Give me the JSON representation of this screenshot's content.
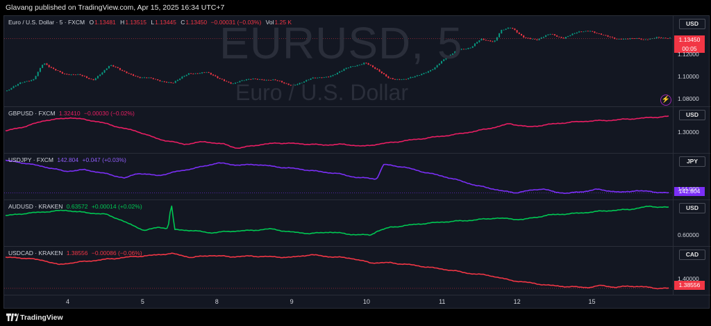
{
  "header": {
    "published_text": "Glavang published on TradingView.com, Apr 15, 2025 16:34 UTC+7"
  },
  "footer": {
    "brand": "TradingView"
  },
  "colors": {
    "down": "#f23645",
    "up": "#089981",
    "gbp": "#e91e63",
    "jpy": "#7b2ff7",
    "aud": "#00c853",
    "cad": "#f23645"
  },
  "chart_data": [
    {
      "type": "candlestick",
      "watermark": "EURUSD, 5",
      "watermark_sub": "Euro / U.S. Dollar",
      "legend": {
        "symbol": "Euro / U.S. Dollar · 5 · FXCM",
        "o_label": "O",
        "o": "1.13481",
        "h_label": "H",
        "h": "1.13515",
        "l_label": "L",
        "l": "1.13445",
        "c_label": "C",
        "c": "1.13450",
        "chg": "−0.00031 (−0.03%)",
        "vol_label": "Vol",
        "vol": "1.25 K"
      },
      "currency": "USD",
      "price_tag": "1.13450",
      "countdown": "00:05",
      "ticks": [
        "1.12000",
        "1.10000",
        "1.08000"
      ],
      "tick_values": [
        1.12,
        1.1,
        1.08
      ],
      "ylim": [
        1.073,
        1.155
      ],
      "path": [
        [
          0,
          1.087
        ],
        [
          0.02,
          1.094
        ],
        [
          0.04,
          1.098
        ],
        [
          0.055,
          1.112
        ],
        [
          0.065,
          1.108
        ],
        [
          0.085,
          1.103
        ],
        [
          0.11,
          1.101
        ],
        [
          0.13,
          1.097
        ],
        [
          0.155,
          1.11
        ],
        [
          0.18,
          1.104
        ],
        [
          0.2,
          1.099
        ],
        [
          0.22,
          1.098
        ],
        [
          0.25,
          1.094
        ],
        [
          0.275,
          1.103
        ],
        [
          0.3,
          1.104
        ],
        [
          0.32,
          1.098
        ],
        [
          0.34,
          1.094
        ],
        [
          0.37,
          1.098
        ],
        [
          0.4,
          1.097
        ],
        [
          0.43,
          1.092
        ],
        [
          0.46,
          1.098
        ],
        [
          0.49,
          1.101
        ],
        [
          0.515,
          1.108
        ],
        [
          0.54,
          1.113
        ],
        [
          0.56,
          1.105
        ],
        [
          0.575,
          1.099
        ],
        [
          0.6,
          1.097
        ],
        [
          0.62,
          1.101
        ],
        [
          0.645,
          1.108
        ],
        [
          0.665,
          1.118
        ],
        [
          0.68,
          1.125
        ],
        [
          0.7,
          1.126
        ],
        [
          0.715,
          1.134
        ],
        [
          0.735,
          1.132
        ],
        [
          0.745,
          1.142
        ],
        [
          0.76,
          1.144
        ],
        [
          0.78,
          1.136
        ],
        [
          0.8,
          1.133
        ],
        [
          0.82,
          1.139
        ],
        [
          0.84,
          1.135
        ],
        [
          0.86,
          1.14
        ],
        [
          0.88,
          1.142
        ],
        [
          0.9,
          1.137
        ],
        [
          0.92,
          1.134
        ],
        [
          0.94,
          1.135
        ],
        [
          0.96,
          1.133
        ],
        [
          0.98,
          1.136
        ],
        [
          1.0,
          1.1345
        ]
      ]
    },
    {
      "type": "line",
      "legend": {
        "symbol": "GBPUSD · FXCM",
        "last": "1.32410",
        "chg": "−0.00030 (−0.02%)"
      },
      "currency": "USD",
      "ticks": [
        "1.30000"
      ],
      "tick_values": [
        1.3
      ],
      "ylim": [
        1.268,
        1.338
      ],
      "price_tag": "",
      "path": [
        [
          0,
          1.302
        ],
        [
          0.03,
          1.309
        ],
        [
          0.06,
          1.318
        ],
        [
          0.1,
          1.322
        ],
        [
          0.14,
          1.316
        ],
        [
          0.17,
          1.308
        ],
        [
          0.2,
          1.301
        ],
        [
          0.23,
          1.29
        ],
        [
          0.27,
          1.282
        ],
        [
          0.3,
          1.286
        ],
        [
          0.33,
          1.282
        ],
        [
          0.35,
          1.276
        ],
        [
          0.38,
          1.281
        ],
        [
          0.41,
          1.284
        ],
        [
          0.44,
          1.283
        ],
        [
          0.48,
          1.281
        ],
        [
          0.51,
          1.282
        ],
        [
          0.54,
          1.279
        ],
        [
          0.56,
          1.282
        ],
        [
          0.6,
          1.287
        ],
        [
          0.64,
          1.292
        ],
        [
          0.68,
          1.297
        ],
        [
          0.71,
          1.302
        ],
        [
          0.74,
          1.308
        ],
        [
          0.76,
          1.313
        ],
        [
          0.79,
          1.308
        ],
        [
          0.82,
          1.312
        ],
        [
          0.85,
          1.315
        ],
        [
          0.88,
          1.317
        ],
        [
          0.91,
          1.318
        ],
        [
          0.94,
          1.32
        ],
        [
          0.97,
          1.322
        ],
        [
          1.0,
          1.324
        ]
      ]
    },
    {
      "type": "line",
      "legend": {
        "symbol": "USDJPY · FXCM",
        "last": "142.804",
        "chg": "+0.047 (+0.03%)"
      },
      "currency": "JPY",
      "ticks": [
        "144.000"
      ],
      "tick_values": [
        144.0
      ],
      "ylim": [
        140.5,
        155.5
      ],
      "price_tag": "142.804",
      "path": [
        [
          0,
          153.3
        ],
        [
          0.03,
          152.4
        ],
        [
          0.06,
          151.2
        ],
        [
          0.09,
          149.8
        ],
        [
          0.12,
          150.3
        ],
        [
          0.15,
          149.1
        ],
        [
          0.18,
          147.6
        ],
        [
          0.2,
          149.2
        ],
        [
          0.23,
          148.4
        ],
        [
          0.26,
          149.8
        ],
        [
          0.29,
          151.0
        ],
        [
          0.32,
          152.5
        ],
        [
          0.35,
          151.8
        ],
        [
          0.38,
          152.0
        ],
        [
          0.41,
          151.2
        ],
        [
          0.44,
          150.6
        ],
        [
          0.47,
          149.8
        ],
        [
          0.5,
          149.1
        ],
        [
          0.53,
          147.8
        ],
        [
          0.56,
          147.4
        ],
        [
          0.57,
          152.0
        ],
        [
          0.6,
          151.2
        ],
        [
          0.63,
          149.6
        ],
        [
          0.66,
          148.2
        ],
        [
          0.69,
          146.5
        ],
        [
          0.71,
          145.2
        ],
        [
          0.73,
          144.4
        ],
        [
          0.75,
          143.4
        ],
        [
          0.77,
          142.9
        ],
        [
          0.79,
          143.6
        ],
        [
          0.81,
          144.2
        ],
        [
          0.83,
          143.0
        ],
        [
          0.85,
          142.8
        ],
        [
          0.87,
          143.2
        ],
        [
          0.89,
          144.0
        ],
        [
          0.91,
          143.5
        ],
        [
          0.93,
          143.0
        ],
        [
          0.95,
          143.6
        ],
        [
          0.97,
          143.3
        ],
        [
          1.0,
          142.804
        ]
      ]
    },
    {
      "type": "line",
      "legend": {
        "symbol": "AUDUSD · KRAKEN",
        "last": "0.63572",
        "chg": "+0.00014 (+0.02%)"
      },
      "currency": "USD",
      "ticks": [
        "0.60000"
      ],
      "tick_values": [
        0.6
      ],
      "ylim": [
        0.585,
        0.645
      ],
      "price_tag": "",
      "path": [
        [
          0,
          0.625
        ],
        [
          0.03,
          0.628
        ],
        [
          0.06,
          0.63
        ],
        [
          0.09,
          0.632
        ],
        [
          0.12,
          0.629
        ],
        [
          0.15,
          0.627
        ],
        [
          0.17,
          0.621
        ],
        [
          0.19,
          0.613
        ],
        [
          0.21,
          0.606
        ],
        [
          0.23,
          0.61
        ],
        [
          0.245,
          0.609
        ],
        [
          0.25,
          0.641
        ],
        [
          0.255,
          0.607
        ],
        [
          0.28,
          0.606
        ],
        [
          0.31,
          0.603
        ],
        [
          0.34,
          0.605
        ],
        [
          0.37,
          0.606
        ],
        [
          0.4,
          0.608
        ],
        [
          0.43,
          0.604
        ],
        [
          0.46,
          0.602
        ],
        [
          0.49,
          0.604
        ],
        [
          0.52,
          0.601
        ],
        [
          0.55,
          0.6
        ],
        [
          0.56,
          0.605
        ],
        [
          0.58,
          0.61
        ],
        [
          0.62,
          0.614
        ],
        [
          0.66,
          0.617
        ],
        [
          0.7,
          0.619
        ],
        [
          0.74,
          0.622
        ],
        [
          0.78,
          0.62
        ],
        [
          0.82,
          0.626
        ],
        [
          0.86,
          0.628
        ],
        [
          0.9,
          0.631
        ],
        [
          0.94,
          0.633
        ],
        [
          0.97,
          0.637
        ],
        [
          1.0,
          0.63572
        ]
      ]
    },
    {
      "type": "line",
      "legend": {
        "symbol": "USDCAD · KRAKEN",
        "last": "1.38556",
        "chg": "−0.00086 (−0.06%)"
      },
      "currency": "CAD",
      "ticks": [
        "1.40000"
      ],
      "tick_values": [
        1.4
      ],
      "ylim": [
        1.375,
        1.448
      ],
      "price_tag": "1.38556",
      "path": [
        [
          0,
          1.432
        ],
        [
          0.03,
          1.431
        ],
        [
          0.06,
          1.427
        ],
        [
          0.08,
          1.421
        ],
        [
          0.1,
          1.424
        ],
        [
          0.13,
          1.427
        ],
        [
          0.16,
          1.43
        ],
        [
          0.19,
          1.433
        ],
        [
          0.22,
          1.435
        ],
        [
          0.25,
          1.438
        ],
        [
          0.28,
          1.432
        ],
        [
          0.31,
          1.435
        ],
        [
          0.34,
          1.433
        ],
        [
          0.37,
          1.434
        ],
        [
          0.4,
          1.433
        ],
        [
          0.43,
          1.432
        ],
        [
          0.46,
          1.436
        ],
        [
          0.49,
          1.433
        ],
        [
          0.52,
          1.431
        ],
        [
          0.55,
          1.424
        ],
        [
          0.58,
          1.424
        ],
        [
          0.61,
          1.421
        ],
        [
          0.64,
          1.417
        ],
        [
          0.67,
          1.413
        ],
        [
          0.7,
          1.408
        ],
        [
          0.73,
          1.405
        ],
        [
          0.76,
          1.398
        ],
        [
          0.79,
          1.394
        ],
        [
          0.82,
          1.39
        ],
        [
          0.85,
          1.388
        ],
        [
          0.88,
          1.387
        ],
        [
          0.9,
          1.39
        ],
        [
          0.92,
          1.387
        ],
        [
          0.94,
          1.389
        ],
        [
          0.96,
          1.388
        ],
        [
          0.98,
          1.386
        ],
        [
          1.0,
          1.38556
        ]
      ]
    }
  ],
  "xaxis": {
    "ticks": [
      "4",
      "5",
      "8",
      "9",
      "10",
      "11",
      "12",
      "15"
    ],
    "tick_positions": [
      0.095,
      0.207,
      0.318,
      0.43,
      0.542,
      0.655,
      0.767,
      0.879
    ]
  },
  "icons": {
    "lightning": "⚡"
  }
}
